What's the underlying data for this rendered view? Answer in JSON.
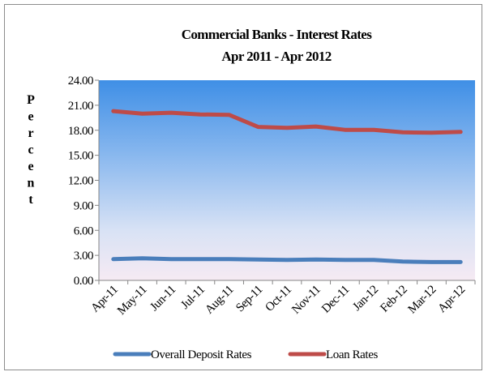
{
  "chart_data": {
    "type": "line",
    "title": "Commercial Banks - Interest Rates",
    "subtitle": "Apr 2011 - Apr 2012",
    "ylabel": "Percent",
    "ylim": [
      0,
      24
    ],
    "yticks": [
      "0.00",
      "3.00",
      "6.00",
      "9.00",
      "12.00",
      "15.00",
      "18.00",
      "21.00",
      "24.00"
    ],
    "categories": [
      "Apr-11",
      "May-11",
      "Jun-11",
      "Jul-11",
      "Aug-11",
      "Sep-11",
      "Oct-11",
      "Nov-11",
      "Dec-11",
      "Jan-12",
      "Feb-12",
      "Mar-12",
      "Apr-12"
    ],
    "series": [
      {
        "name": "Overall Deposit Rates",
        "color": "#4a7ebb",
        "values": [
          2.55,
          2.65,
          2.55,
          2.55,
          2.55,
          2.5,
          2.45,
          2.5,
          2.45,
          2.45,
          2.25,
          2.2,
          2.2
        ]
      },
      {
        "name": "Loan Rates",
        "color": "#be4b48",
        "values": [
          20.3,
          20.0,
          20.1,
          19.9,
          19.85,
          18.4,
          18.3,
          18.45,
          18.05,
          18.05,
          17.75,
          17.7,
          17.8
        ]
      }
    ],
    "legend_position": "bottom",
    "grid": false,
    "plot_background": "gradient blue to pale pink"
  }
}
